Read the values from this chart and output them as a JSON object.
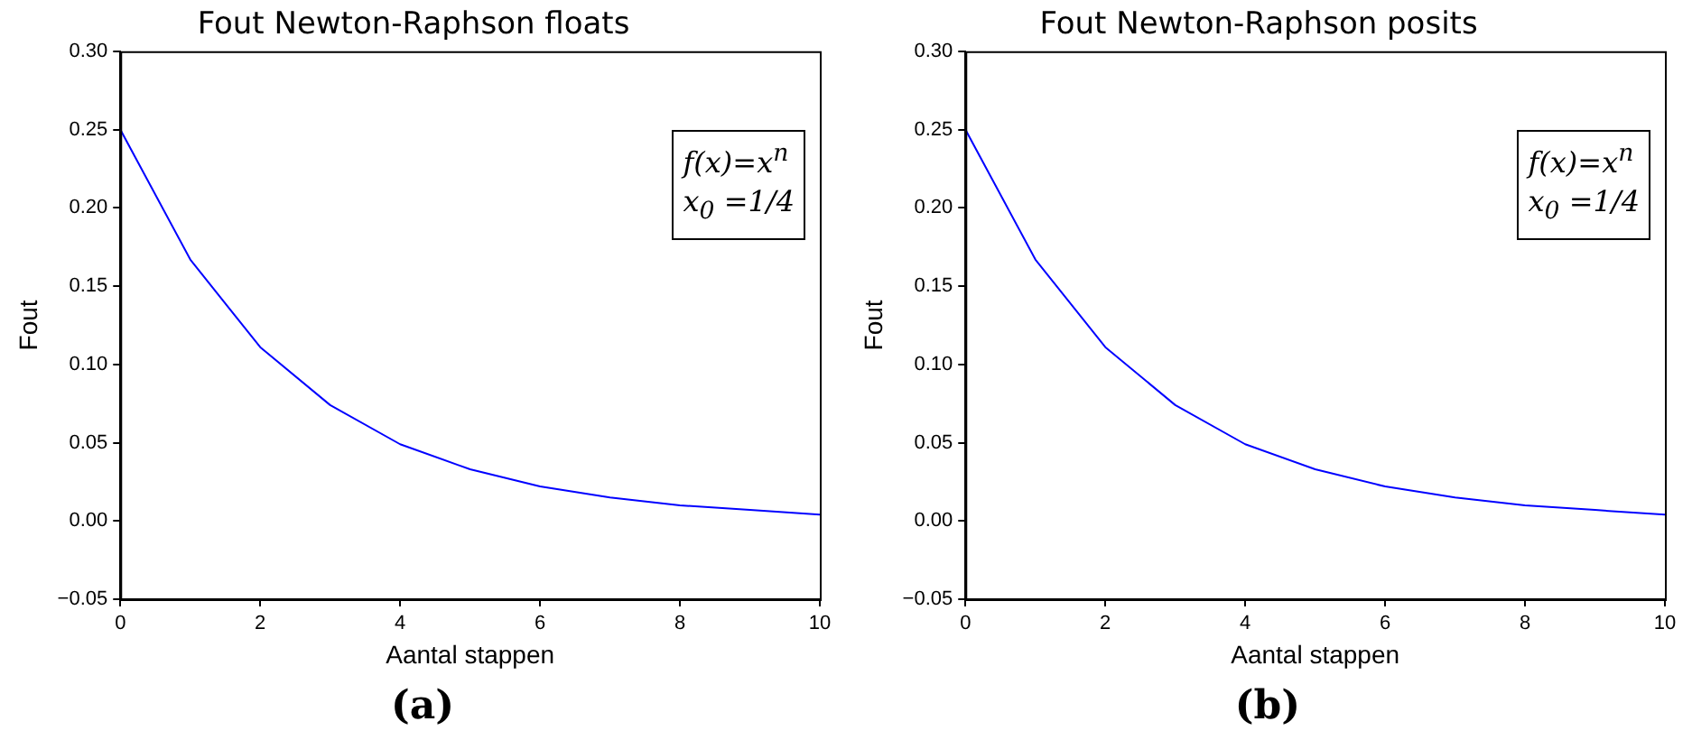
{
  "chart_data": [
    {
      "type": "line",
      "title": "Fout Newton-Raphson floats",
      "xlabel": "Aantal stappen",
      "ylabel": "Fout",
      "x": [
        0,
        1,
        2,
        3,
        4,
        5,
        6,
        7,
        8,
        9,
        10
      ],
      "series": [
        {
          "color": "#0000ff",
          "values": [
            0.25,
            0.167,
            0.111,
            0.074,
            0.049,
            0.033,
            0.022,
            0.015,
            0.01,
            0.007,
            0.004
          ]
        }
      ],
      "xlim": [
        0,
        10
      ],
      "xticks": [
        0,
        2,
        4,
        6,
        8,
        10
      ],
      "ylim": [
        -0.05,
        0.3
      ],
      "yticks": [
        {
          "value": -0.05,
          "label": "−0.05"
        },
        {
          "value": 0,
          "label": "0.00"
        },
        {
          "value": 0.05,
          "label": "0.05"
        },
        {
          "value": 0.1,
          "label": "0.10"
        },
        {
          "value": 0.15,
          "label": "0.15"
        },
        {
          "value": 0.2,
          "label": "0.20"
        },
        {
          "value": 0.25,
          "label": "0.25"
        },
        {
          "value": 0.3,
          "label": "0.30"
        }
      ],
      "grid": false,
      "legend": false,
      "marker": "none",
      "line_style": "solid",
      "annotations": [
        "f(x)=x$^{n}$",
        "x$_{0}$ =1/4",
        "(a)"
      ]
    },
    {
      "type": "line",
      "title": "Fout Newton-Raphson posits",
      "xlabel": "Aantal stappen",
      "ylabel": "Fout",
      "x": [
        0,
        1,
        2,
        3,
        4,
        5,
        6,
        7,
        8,
        9,
        10
      ],
      "series": [
        {
          "color": "#0000ff",
          "values": [
            0.25,
            0.167,
            0.111,
            0.074,
            0.049,
            0.033,
            0.022,
            0.015,
            0.01,
            0.007,
            0.004
          ]
        }
      ],
      "xlim": [
        0,
        10
      ],
      "xticks": [
        0,
        2,
        4,
        6,
        8,
        10
      ],
      "ylim": [
        -0.05,
        0.3
      ],
      "yticks": [
        {
          "value": -0.05,
          "label": "−0.05"
        },
        {
          "value": 0,
          "label": "0.00"
        },
        {
          "value": 0.05,
          "label": "0.05"
        },
        {
          "value": 0.1,
          "label": "0.10"
        },
        {
          "value": 0.15,
          "label": "0.15"
        },
        {
          "value": 0.2,
          "label": "0.20"
        },
        {
          "value": 0.25,
          "label": "0.25"
        },
        {
          "value": 0.3,
          "label": "0.30"
        }
      ],
      "grid": false,
      "legend": false,
      "marker": "none",
      "line_style": "solid",
      "annotations": [
        "f(x)=x$^{n}$",
        "x$_{0}$ =1/4",
        "(b)"
      ]
    }
  ]
}
